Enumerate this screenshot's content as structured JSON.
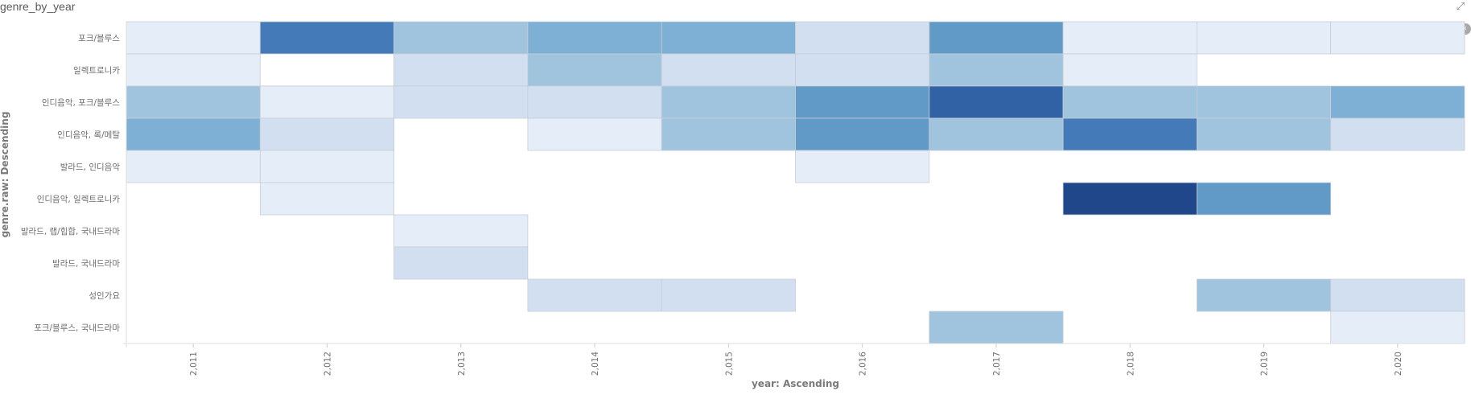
{
  "panel": {
    "title": "genre_by_year"
  },
  "icons": {
    "expand": "expand-icon",
    "legend_toggle": "chevron-left-icon"
  },
  "chart_data": {
    "type": "heatmap",
    "title": "genre_by_year",
    "xlabel": "year: Ascending",
    "ylabel": "genre.raw: Descending",
    "x": [
      "2,011",
      "2,012",
      "2,013",
      "2,014",
      "2,015",
      "2,016",
      "2,017",
      "2,018",
      "2,019",
      "2,020"
    ],
    "y": [
      "포크/블루스",
      "일렉트로니카",
      "인디음악, 포크/블루스",
      "인디음악, 록/메탈",
      "발라드, 인디음악",
      "인디음악, 일렉트로니카",
      "발라드, 랩/힙합, 국내드라마",
      "발라드, 국내드라마",
      "성인가요",
      "포크/블루스, 국내드라마"
    ],
    "values": [
      [
        1,
        6,
        3,
        4,
        4,
        2,
        5,
        1,
        1,
        0.5
      ],
      [
        0.5,
        0,
        2,
        3,
        2,
        2,
        2.5,
        1,
        null,
        null
      ],
      [
        3,
        0.5,
        2,
        2,
        3,
        5,
        7,
        3,
        3,
        4
      ],
      [
        4,
        2,
        null,
        0.5,
        3,
        5,
        3,
        6,
        3,
        2
      ],
      [
        0.5,
        0.5,
        null,
        null,
        null,
        1,
        null,
        null,
        null,
        null
      ],
      [
        null,
        0.5,
        null,
        null,
        null,
        null,
        null,
        8,
        5,
        null
      ],
      [
        null,
        null,
        1,
        null,
        null,
        null,
        null,
        null,
        null,
        null
      ],
      [
        null,
        null,
        2,
        null,
        null,
        null,
        null,
        null,
        null,
        null
      ],
      [
        null,
        null,
        null,
        2,
        2,
        null,
        null,
        null,
        2.5,
        2
      ],
      [
        null,
        null,
        null,
        null,
        null,
        null,
        3,
        null,
        null,
        0.5
      ]
    ],
    "color_scale": [
      "#f7fbff",
      "#e5edf8",
      "#d2dff0",
      "#a0c3de",
      "#7eafd4",
      "#6199c7",
      "#447ab8",
      "#3162a6",
      "#21478b"
    ],
    "grid": false,
    "legend": "none"
  }
}
